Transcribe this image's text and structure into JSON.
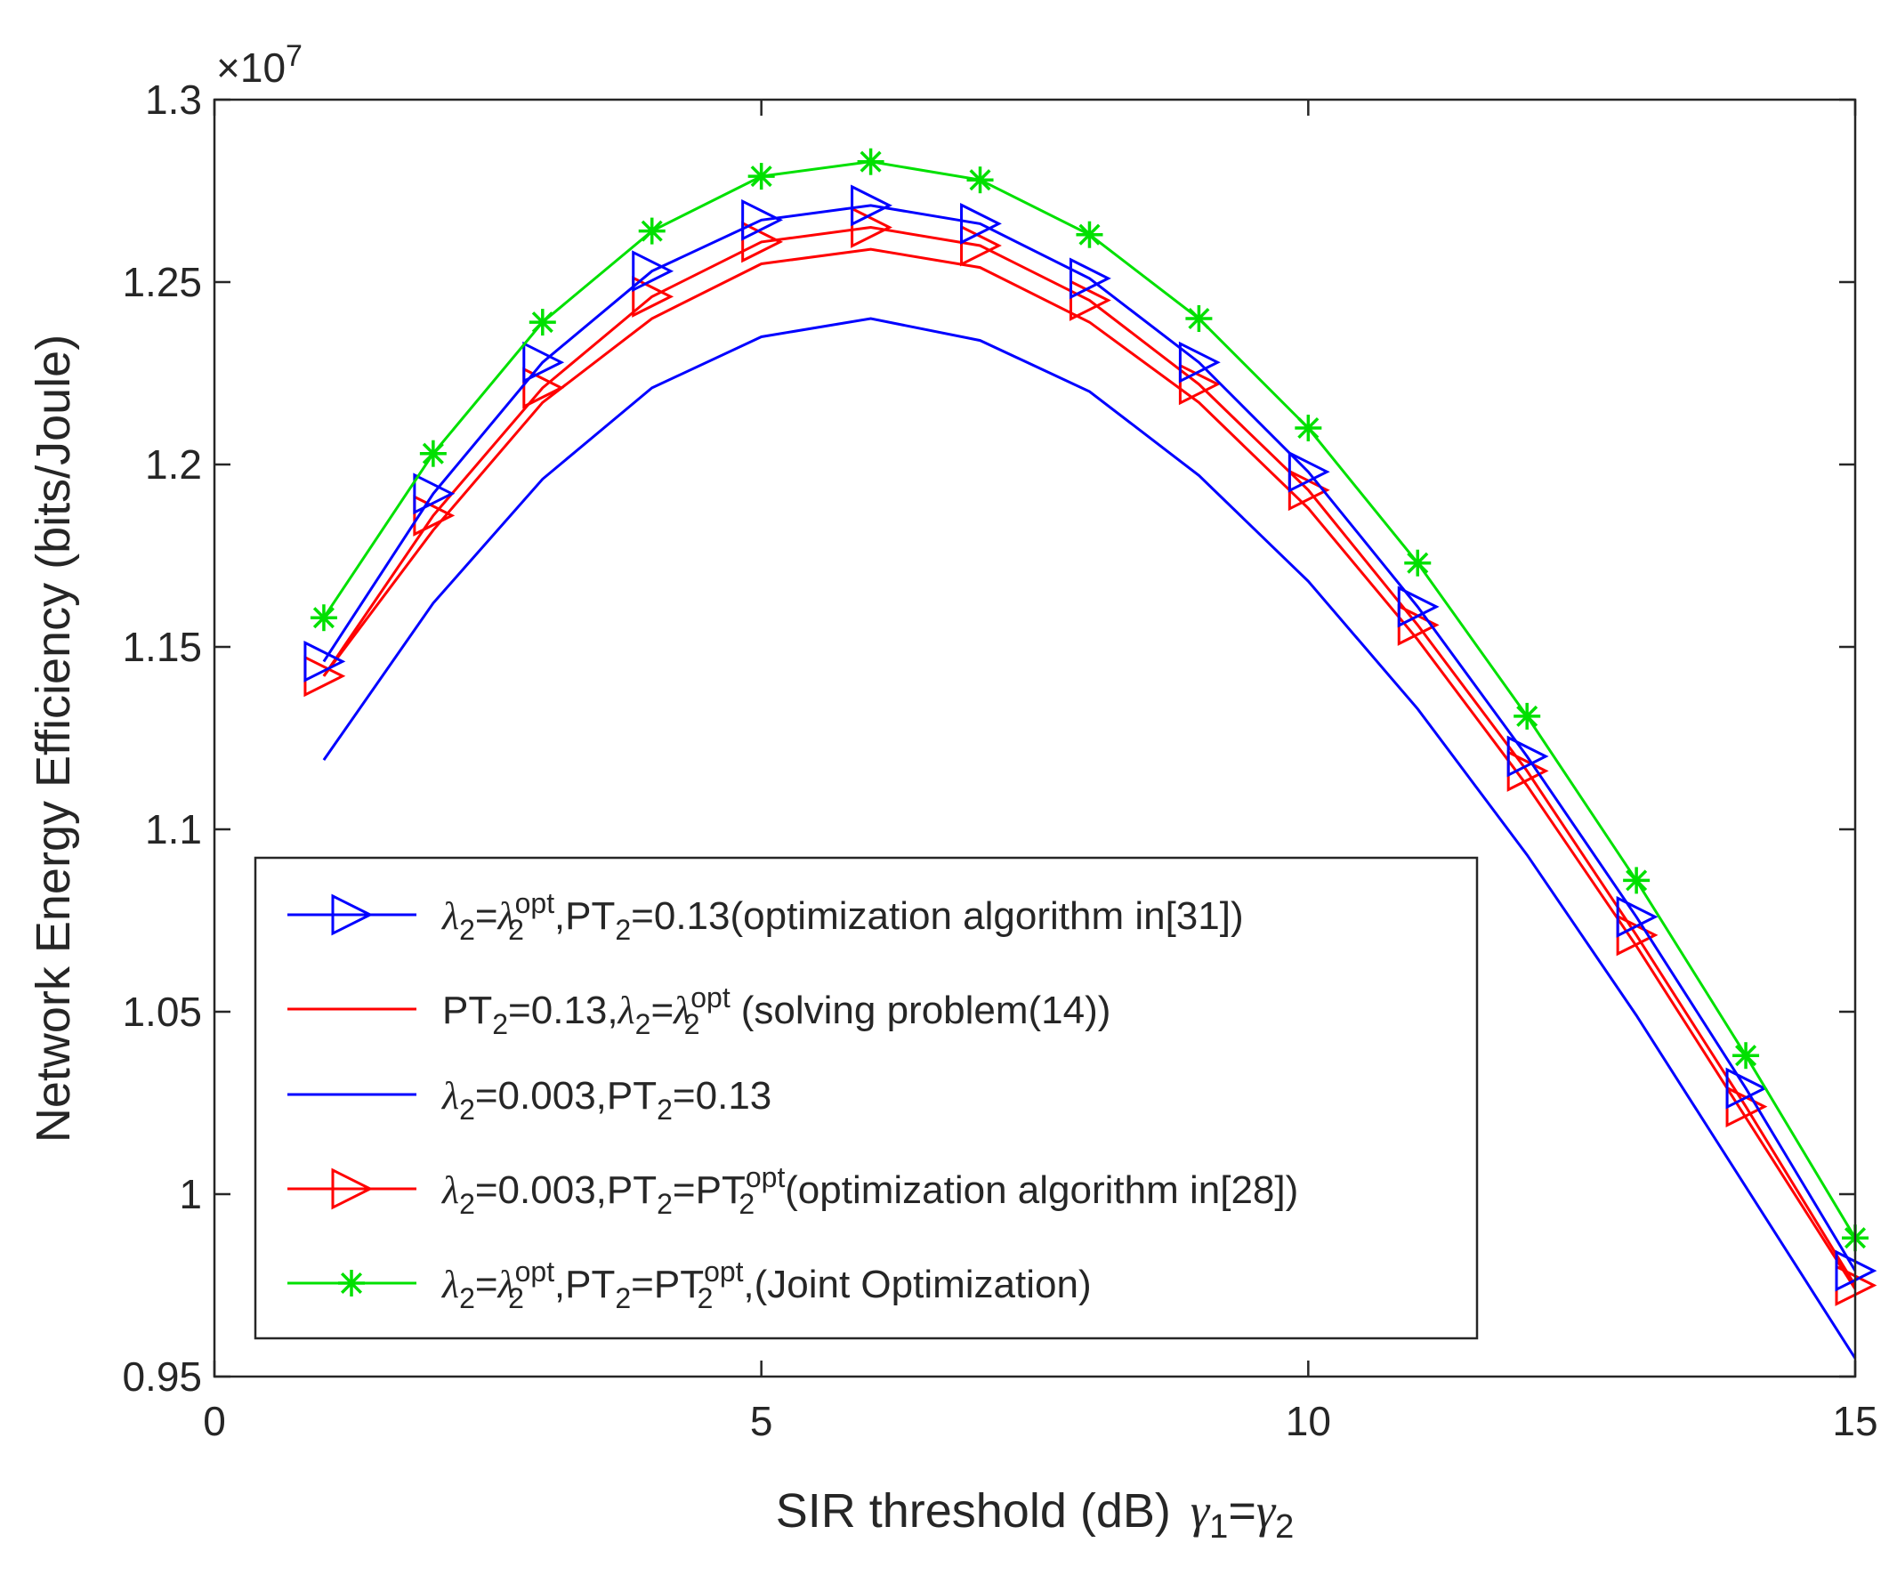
{
  "chart_data": {
    "type": "line",
    "title": "",
    "xlabel": "SIR threshold (dB)  γ1=γ2",
    "xlabel_parts": {
      "main": "SIR threshold (dB)",
      "gamma1": "γ",
      "sub1": "1",
      "eq": "=",
      "gamma2": "γ",
      "sub2": "2"
    },
    "ylabel": "Network Energy Efficiency (bits/Joule)",
    "xlim": [
      0,
      15
    ],
    "ylim": [
      0.95,
      1.3
    ],
    "exponent_label": {
      "base": "×10",
      "power": "7"
    },
    "xticks": [
      0,
      5,
      10,
      15
    ],
    "xtick_labels": [
      "0",
      "5",
      "10",
      "15"
    ],
    "yticks": [
      0.95,
      1.0,
      1.05,
      1.1,
      1.15,
      1.2,
      1.25,
      1.3
    ],
    "ytick_labels": [
      "0.95",
      "1",
      "1.05",
      "1.1",
      "1.15",
      "1.2",
      "1.25",
      "1.3"
    ],
    "grid": false,
    "legend_position": "lower-left",
    "x": [
      1,
      2,
      3,
      4,
      5,
      6,
      7,
      8,
      9,
      10,
      11,
      12,
      13,
      14,
      15
    ],
    "series": [
      {
        "name": "λ2=λ2opt,PT2=0.13(optimization algorithm in[31])",
        "color": "#0000ff",
        "marker": "triangle-right",
        "values": [
          1.146,
          1.192,
          1.228,
          1.253,
          1.267,
          1.271,
          1.266,
          1.251,
          1.228,
          1.198,
          1.161,
          1.12,
          1.076,
          1.029,
          0.979
        ]
      },
      {
        "name": "PT2=0.13,λ2=λ2opt (solving problem(14))",
        "color": "#ff0000",
        "marker": "none",
        "values": [
          1.142,
          1.182,
          1.217,
          1.24,
          1.255,
          1.259,
          1.254,
          1.239,
          1.217,
          1.188,
          1.152,
          1.112,
          1.068,
          1.021,
          0.974
        ]
      },
      {
        "name": "λ2=0.003,PT2=0.13",
        "color": "#0000ff",
        "marker": "none",
        "values": [
          1.119,
          1.162,
          1.196,
          1.221,
          1.235,
          1.24,
          1.234,
          1.22,
          1.197,
          1.168,
          1.133,
          1.093,
          1.049,
          1.002,
          0.955
        ]
      },
      {
        "name": "λ2=0.003,PT2=PT2opt(optimization algorithm in[28])",
        "color": "#ff0000",
        "marker": "triangle-right",
        "values": [
          1.142,
          1.186,
          1.221,
          1.246,
          1.261,
          1.265,
          1.26,
          1.245,
          1.222,
          1.193,
          1.156,
          1.116,
          1.071,
          1.024,
          0.975
        ]
      },
      {
        "name": "λ2=λ2opt,PT2=PT2opt,(Joint Optimization)",
        "color": "#00e000",
        "marker": "star",
        "values": [
          1.158,
          1.203,
          1.239,
          1.264,
          1.279,
          1.283,
          1.278,
          1.263,
          1.24,
          1.21,
          1.173,
          1.131,
          1.086,
          1.038,
          0.988
        ]
      }
    ],
    "legend_entries": [
      {
        "color": "#0000ff",
        "marker": "triangle-right",
        "parts": [
          [
            "m",
            "λ"
          ],
          [
            "sub",
            "2"
          ],
          [
            "t",
            "="
          ],
          [
            "m",
            "λ"
          ],
          [
            "supsub",
            "opt",
            "2"
          ],
          [
            "t",
            ",PT"
          ],
          [
            "sub",
            "2"
          ],
          [
            "t",
            "=0.13(optimization algorithm in[31])"
          ]
        ]
      },
      {
        "color": "#ff0000",
        "marker": "none",
        "parts": [
          [
            "t",
            "PT"
          ],
          [
            "sub",
            "2"
          ],
          [
            "t",
            "=0.13,"
          ],
          [
            "m",
            "λ"
          ],
          [
            "sub",
            "2"
          ],
          [
            "t",
            "="
          ],
          [
            "m",
            "λ"
          ],
          [
            "supsub",
            "opt",
            "2"
          ],
          [
            "t",
            " (solving problem(14))"
          ]
        ]
      },
      {
        "color": "#0000ff",
        "marker": "none",
        "parts": [
          [
            "m",
            "λ"
          ],
          [
            "sub",
            "2"
          ],
          [
            "t",
            "=0.003,PT"
          ],
          [
            "sub",
            "2"
          ],
          [
            "t",
            "=0.13"
          ]
        ]
      },
      {
        "color": "#ff0000",
        "marker": "triangle-right",
        "parts": [
          [
            "m",
            "λ"
          ],
          [
            "sub",
            "2"
          ],
          [
            "t",
            "=0.003,PT"
          ],
          [
            "sub",
            "2"
          ],
          [
            "t",
            "=PT"
          ],
          [
            "supsub",
            "opt",
            "2"
          ],
          [
            "t",
            "(optimization algorithm in[28])"
          ]
        ]
      },
      {
        "color": "#00e000",
        "marker": "star",
        "parts": [
          [
            "m",
            "λ"
          ],
          [
            "sub",
            "2"
          ],
          [
            "t",
            "="
          ],
          [
            "m",
            "λ"
          ],
          [
            "supsub",
            "opt",
            "2"
          ],
          [
            "t",
            ",PT"
          ],
          [
            "sub",
            "2"
          ],
          [
            "t",
            "=PT"
          ],
          [
            "supsub",
            "opt",
            "2"
          ],
          [
            "t",
            ",(Joint Optimization)"
          ]
        ]
      }
    ]
  }
}
